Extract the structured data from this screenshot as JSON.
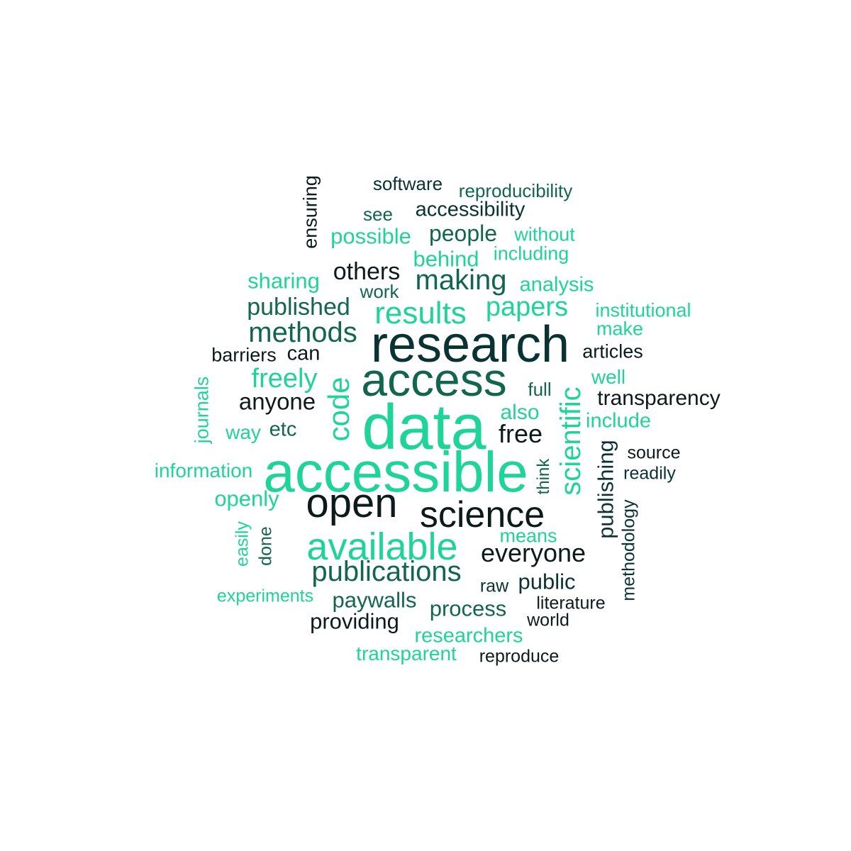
{
  "colors": {
    "bright_green": "#1fd497",
    "mid_green": "#12664e",
    "dark_teal": "#0a3232",
    "near_black": "#0d1a1a"
  },
  "words": [
    {
      "text": "data",
      "color": "#1fd497"
    },
    {
      "text": "accessible",
      "color": "#1fd497"
    },
    {
      "text": "research",
      "color": "#0a3232"
    },
    {
      "text": "access",
      "color": "#12664e"
    },
    {
      "text": "open",
      "color": "#0d1a1a"
    },
    {
      "text": "science",
      "color": "#0d1a1a"
    },
    {
      "text": "available",
      "color": "#1fd497"
    },
    {
      "text": "code",
      "color": "#1fd497"
    },
    {
      "text": "results",
      "color": "#1fd497"
    },
    {
      "text": "scientific",
      "color": "#1fd497"
    },
    {
      "text": "making",
      "color": "#12664e"
    },
    {
      "text": "publications",
      "color": "#12664e"
    },
    {
      "text": "methods",
      "color": "#12664e"
    },
    {
      "text": "freely",
      "color": "#1fd497"
    },
    {
      "text": "papers",
      "color": "#1fd497"
    },
    {
      "text": "everyone",
      "color": "#0d1a1a"
    },
    {
      "text": "published",
      "color": "#12664e"
    },
    {
      "text": "others",
      "color": "#0d1a1a"
    },
    {
      "text": "free",
      "color": "#0d1a1a"
    },
    {
      "text": "anyone",
      "color": "#0d1a1a"
    },
    {
      "text": "publishing",
      "color": "#0a3232"
    },
    {
      "text": "people",
      "color": "#12664e"
    },
    {
      "text": "process",
      "color": "#12664e"
    },
    {
      "text": "paywalls",
      "color": "#12664e"
    },
    {
      "text": "providing",
      "color": "#0d1a1a"
    },
    {
      "text": "public",
      "color": "#0a3232"
    },
    {
      "text": "transparency",
      "color": "#0d1a1a"
    },
    {
      "text": "possible",
      "color": "#1fd497"
    },
    {
      "text": "behind",
      "color": "#1fd497"
    },
    {
      "text": "openly",
      "color": "#1fd497"
    },
    {
      "text": "sharing",
      "color": "#1fd497"
    },
    {
      "text": "researchers",
      "color": "#1fd497"
    },
    {
      "text": "accessibility",
      "color": "#0a3232"
    },
    {
      "text": "transparent",
      "color": "#1fd497"
    },
    {
      "text": "can",
      "color": "#0d1a1a"
    },
    {
      "text": "barriers",
      "color": "#0d1a1a"
    },
    {
      "text": "articles",
      "color": "#0d1a1a"
    },
    {
      "text": "analysis",
      "color": "#1fd497"
    },
    {
      "text": "without",
      "color": "#1fd497"
    },
    {
      "text": "including",
      "color": "#1fd497"
    },
    {
      "text": "software",
      "color": "#0a3232"
    },
    {
      "text": "reproducibility",
      "color": "#12664e"
    },
    {
      "text": "ensuring",
      "color": "#0d1a1a"
    },
    {
      "text": "see",
      "color": "#12664e"
    },
    {
      "text": "work",
      "color": "#12664e"
    },
    {
      "text": "institutional",
      "color": "#1fd497"
    },
    {
      "text": "make",
      "color": "#1fd497"
    },
    {
      "text": "well",
      "color": "#1fd497"
    },
    {
      "text": "full",
      "color": "#12664e"
    },
    {
      "text": "also",
      "color": "#1fd497"
    },
    {
      "text": "include",
      "color": "#1fd497"
    },
    {
      "text": "journals",
      "color": "#1fd497"
    },
    {
      "text": "way",
      "color": "#1fd497"
    },
    {
      "text": "etc",
      "color": "#12664e"
    },
    {
      "text": "information",
      "color": "#1fd497"
    },
    {
      "text": "source",
      "color": "#0d1a1a"
    },
    {
      "text": "readily",
      "color": "#0a3232"
    },
    {
      "text": "think",
      "color": "#12664e"
    },
    {
      "text": "methodology",
      "color": "#0a3232"
    },
    {
      "text": "easily",
      "color": "#1fd497"
    },
    {
      "text": "done",
      "color": "#12664e"
    },
    {
      "text": "means",
      "color": "#1fd497"
    },
    {
      "text": "experiments",
      "color": "#1fd497"
    },
    {
      "text": "raw",
      "color": "#0a3232"
    },
    {
      "text": "literature",
      "color": "#0d1a1a"
    },
    {
      "text": "world",
      "color": "#0d1a1a"
    },
    {
      "text": "reproduce",
      "color": "#0d1a1a"
    }
  ]
}
